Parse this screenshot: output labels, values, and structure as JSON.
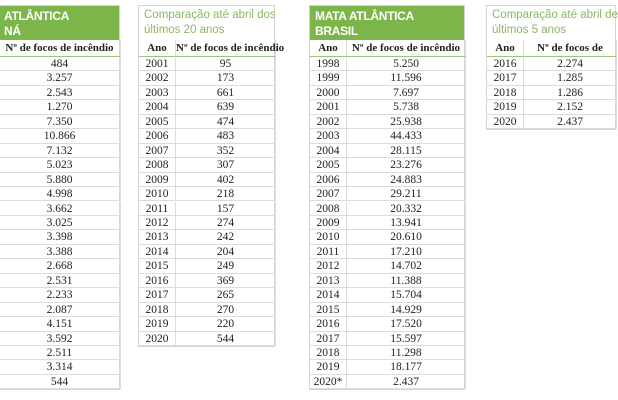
{
  "tables": [
    {
      "title": [
        "ATLÂNTICA",
        "NÁ"
      ],
      "columns": [
        "Nº de focos de incêndio"
      ],
      "rows": [
        [
          "484"
        ],
        [
          "3.257"
        ],
        [
          "2.543"
        ],
        [
          "1.270"
        ],
        [
          "7.350"
        ],
        [
          "10.866"
        ],
        [
          "7.132"
        ],
        [
          "5.023"
        ],
        [
          "5.880"
        ],
        [
          "4.998"
        ],
        [
          "3.662"
        ],
        [
          "3.025"
        ],
        [
          "3.398"
        ],
        [
          "3.388"
        ],
        [
          "2.668"
        ],
        [
          "2.531"
        ],
        [
          "2.233"
        ],
        [
          "2.087"
        ],
        [
          "4.151"
        ],
        [
          "3.592"
        ],
        [
          "2.511"
        ],
        [
          "3.314"
        ],
        [
          "544"
        ]
      ]
    },
    {
      "title": [
        "Comparação até abril dos",
        "últimos 20 anos"
      ],
      "columns": [
        "Ano",
        "Nº de focos de incêndio"
      ],
      "rows": [
        [
          "2001",
          "95"
        ],
        [
          "2002",
          "173"
        ],
        [
          "2003",
          "661"
        ],
        [
          "2004",
          "639"
        ],
        [
          "2005",
          "474"
        ],
        [
          "2006",
          "483"
        ],
        [
          "2007",
          "352"
        ],
        [
          "2008",
          "307"
        ],
        [
          "2009",
          "402"
        ],
        [
          "2010",
          "218"
        ],
        [
          "2011",
          "157"
        ],
        [
          "2012",
          "274"
        ],
        [
          "2013",
          "242"
        ],
        [
          "2014",
          "204"
        ],
        [
          "2015",
          "249"
        ],
        [
          "2016",
          "369"
        ],
        [
          "2017",
          "265"
        ],
        [
          "2018",
          "270"
        ],
        [
          "2019",
          "220"
        ],
        [
          "2020",
          "544"
        ]
      ]
    },
    {
      "title": [
        "MATA ATLÂNTICA",
        "BRASIL"
      ],
      "columns": [
        "Ano",
        "Nº de focos de incêndio"
      ],
      "rows": [
        [
          "1998",
          "5.250"
        ],
        [
          "1999",
          "11.596"
        ],
        [
          "2000",
          "7.697"
        ],
        [
          "2001",
          "5.738"
        ],
        [
          "2002",
          "25.938"
        ],
        [
          "2003",
          "44.433"
        ],
        [
          "2004",
          "28.115"
        ],
        [
          "2005",
          "23.276"
        ],
        [
          "2006",
          "24.883"
        ],
        [
          "2007",
          "29.211"
        ],
        [
          "2008",
          "20.332"
        ],
        [
          "2009",
          "13.941"
        ],
        [
          "2010",
          "20.610"
        ],
        [
          "2011",
          "17.210"
        ],
        [
          "2012",
          "14.702"
        ],
        [
          "2013",
          "11.388"
        ],
        [
          "2014",
          "15.704"
        ],
        [
          "2015",
          "14.929"
        ],
        [
          "2016",
          "17.520"
        ],
        [
          "2017",
          "15.597"
        ],
        [
          "2018",
          "11.298"
        ],
        [
          "2019",
          "18.177"
        ],
        [
          "2020*",
          "2.437"
        ]
      ]
    },
    {
      "title": [
        "Comparação até abril de",
        "últimos 5 anos"
      ],
      "columns": [
        "Ano",
        "Nº de focos de"
      ],
      "rows": [
        [
          "2016",
          "2.274"
        ],
        [
          "2017",
          "1.285"
        ],
        [
          "2018",
          "1.286"
        ],
        [
          "2019",
          "2.152"
        ],
        [
          "2020",
          "2.437"
        ]
      ]
    }
  ]
}
